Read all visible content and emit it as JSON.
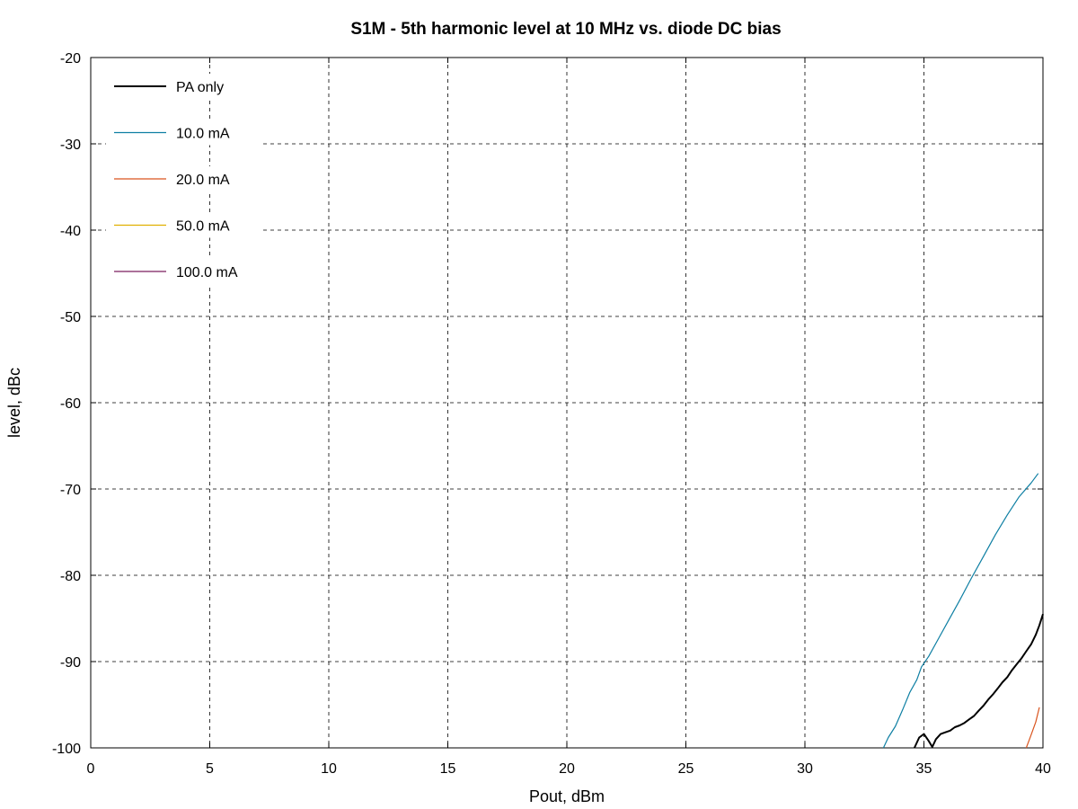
{
  "chart_data": {
    "type": "line",
    "title": "S1M - 5th harmonic level at 10 MHz vs. diode DC bias",
    "xlabel": "Pout, dBm",
    "ylabel": "level, dBc",
    "xlim": [
      0,
      40
    ],
    "ylim": [
      -100,
      -20
    ],
    "xticks": [
      0,
      5,
      10,
      15,
      20,
      25,
      30,
      35,
      40
    ],
    "yticks": [
      -20,
      -30,
      -40,
      -50,
      -60,
      -70,
      -80,
      -90,
      -100
    ],
    "grid": true,
    "legend_position": "top-left",
    "series": [
      {
        "name": "PA only",
        "color": "#000000",
        "x": [
          34.6,
          34.8,
          35.0,
          35.2,
          35.35,
          35.5,
          35.7,
          35.9,
          36.1,
          36.3,
          36.5,
          36.7,
          36.9,
          37.1,
          37.3,
          37.5,
          37.7,
          37.9,
          38.1,
          38.3,
          38.5,
          38.7,
          38.9,
          39.1,
          39.3,
          39.5,
          39.7,
          39.85,
          40.0
        ],
        "y": [
          -100.0,
          -98.8,
          -98.4,
          -99.2,
          -99.9,
          -99.0,
          -98.4,
          -98.2,
          -98.0,
          -97.6,
          -97.4,
          -97.1,
          -96.7,
          -96.3,
          -95.7,
          -95.1,
          -94.4,
          -93.8,
          -93.1,
          -92.4,
          -91.8,
          -91.0,
          -90.3,
          -89.6,
          -88.8,
          -88.0,
          -86.9,
          -85.8,
          -84.5
        ]
      },
      {
        "name": "10.0 mA",
        "color": "#0e7fa3",
        "x": [
          33.3,
          33.5,
          33.8,
          34.1,
          34.4,
          34.7,
          34.9,
          35.2,
          35.6,
          36.0,
          36.5,
          37.0,
          37.5,
          38.0,
          38.5,
          39.0,
          39.5,
          39.8
        ],
        "y": [
          -100.0,
          -98.8,
          -97.5,
          -95.6,
          -93.6,
          -92.1,
          -90.6,
          -89.4,
          -87.4,
          -85.4,
          -82.9,
          -80.3,
          -77.8,
          -75.3,
          -73.0,
          -70.9,
          -69.3,
          -68.2
        ]
      },
      {
        "name": "20.0 mA",
        "color": "#d9541e",
        "x": [
          39.3,
          39.5,
          39.7,
          39.85
        ],
        "y": [
          -100.0,
          -98.5,
          -97.0,
          -95.3
        ]
      },
      {
        "name": "50.0 mA",
        "color": "#e0b000",
        "x": [],
        "y": []
      },
      {
        "name": "100.0 mA",
        "color": "#7a1f5e",
        "x": [],
        "y": []
      }
    ]
  }
}
